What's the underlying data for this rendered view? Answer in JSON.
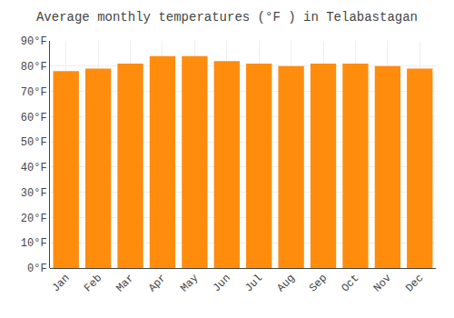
{
  "chart_data": {
    "type": "bar",
    "title": "Average monthly temperatures (°F ) in Telabastagan",
    "categories": [
      "Jan",
      "Feb",
      "Mar",
      "Apr",
      "May",
      "Jun",
      "Jul",
      "Aug",
      "Sep",
      "Oct",
      "Nov",
      "Dec"
    ],
    "values": [
      78,
      79,
      81,
      84,
      84,
      82,
      81,
      80,
      81,
      81,
      80,
      79
    ],
    "color": "#FF8C0D",
    "ylim": [
      0,
      90
    ],
    "yticks": [
      {
        "value": 0,
        "label": "0°F"
      },
      {
        "value": 10,
        "label": "10°F"
      },
      {
        "value": 20,
        "label": "20°F"
      },
      {
        "value": 30,
        "label": "30°F"
      },
      {
        "value": 40,
        "label": "40°F"
      },
      {
        "value": 50,
        "label": "50°F"
      },
      {
        "value": 60,
        "label": "60°F"
      },
      {
        "value": 70,
        "label": "70°F"
      },
      {
        "value": 80,
        "label": "80°F"
      },
      {
        "value": 90,
        "label": "90°F"
      }
    ],
    "grid": true
  }
}
